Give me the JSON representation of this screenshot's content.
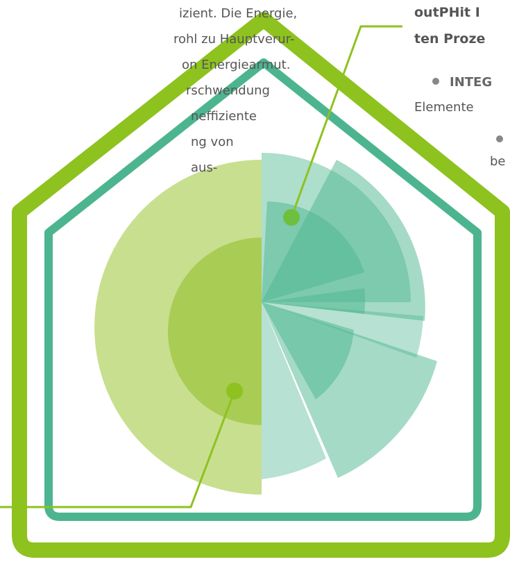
{
  "left_text": {
    "lines": [
      "izient. Die Energie,",
      "rohl zu Hauptverur-",
      "on Energiearmut.",
      "rschwendung",
      "neffiziente",
      "ng  von",
      "aus-"
    ]
  },
  "right_text": {
    "heading": [
      "outPHit I",
      "ten Proze"
    ],
    "bullet_1": "INTEG",
    "line_1": "Elemente",
    "line_2": "be"
  }
}
